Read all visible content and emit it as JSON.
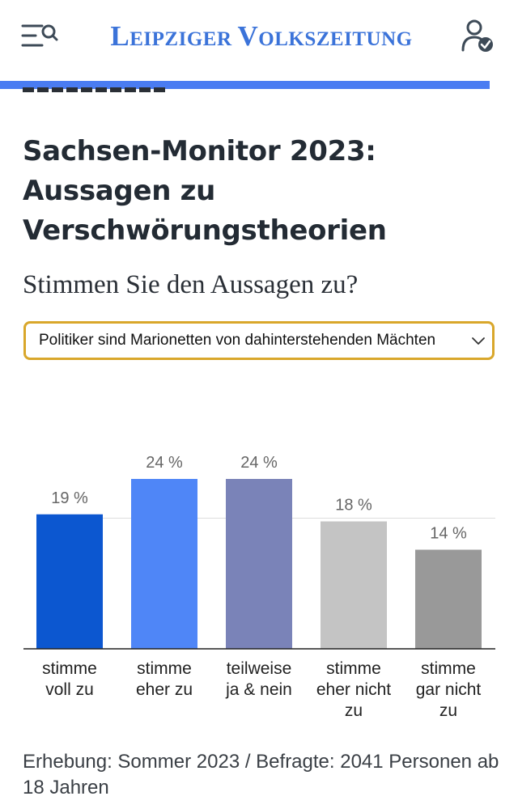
{
  "header": {
    "logo_first": "Leipziger",
    "logo_second": "Volkszeitung",
    "icons": {
      "menu": "menu-search-icon",
      "account": "user-check-icon"
    },
    "colors": {
      "brand": "#3b73d9",
      "bar": "#4a7cf2"
    }
  },
  "article": {
    "title": "Sachsen-Monitor 2023: Aussagen zu Verschwörungstheorien",
    "question": "Stimmen Sie den Aussagen zu?",
    "select": {
      "value": "Politiker sind Marionetten von dahinterstehenden Mächten"
    },
    "footnote": "Erhebung: Sommer 2023 / Befragte: 2041 Personen ab 18 Jahren"
  },
  "chart_data": {
    "type": "bar",
    "categories": [
      [
        "stimme",
        "voll zu"
      ],
      [
        "stimme",
        "eher zu"
      ],
      [
        "teilweise",
        "ja & nein"
      ],
      [
        "stimme",
        "eher nicht",
        "zu"
      ],
      [
        "stimme",
        "gar nicht",
        "zu"
      ]
    ],
    "values": [
      19,
      24,
      24,
      18,
      14
    ],
    "value_labels": [
      "19 %",
      "24 %",
      "24 %",
      "18 %",
      "14 %"
    ],
    "colors": [
      "#0c57d0",
      "#4f86f7",
      "#7a83b8",
      "#c4c4c4",
      "#999999"
    ],
    "ylim": [
      0,
      24
    ],
    "grid": true,
    "title": "",
    "xlabel": "",
    "ylabel": ""
  }
}
